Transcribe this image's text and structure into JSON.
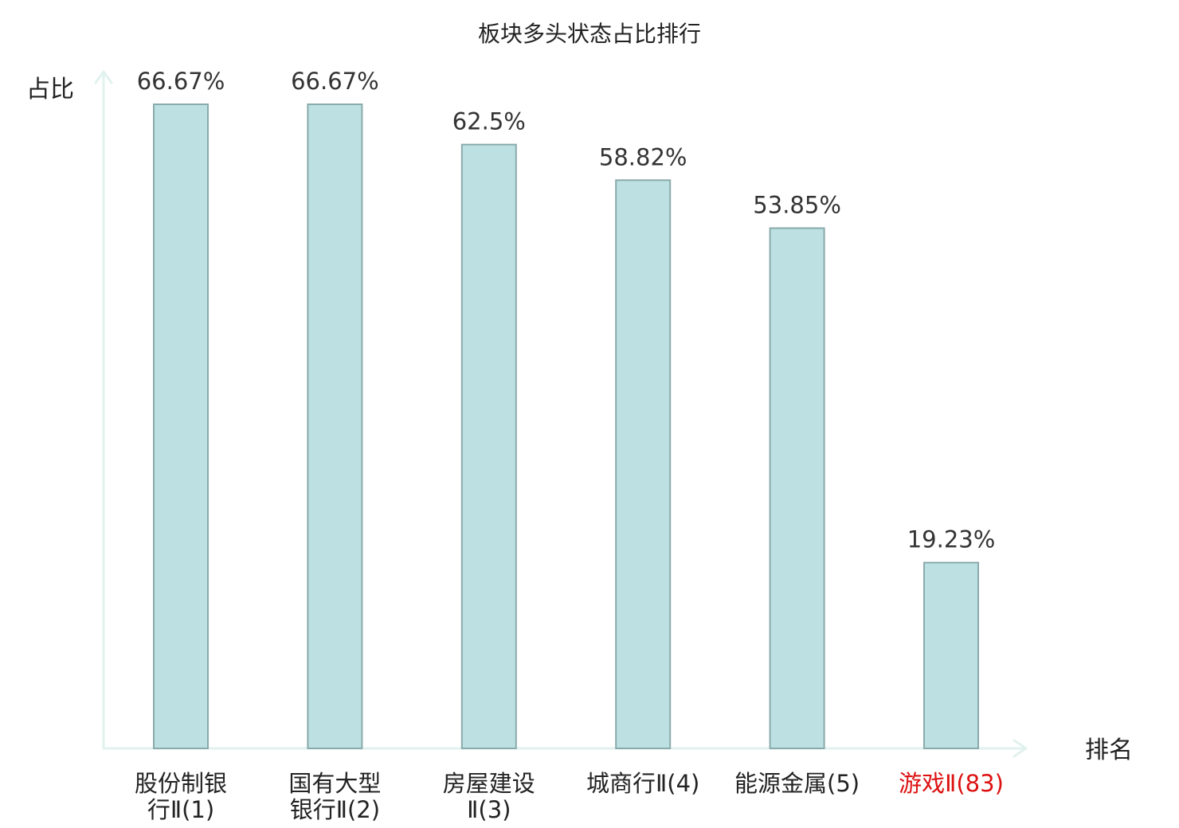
{
  "chart_data": {
    "type": "bar",
    "title": "板块多头状态占比排行",
    "ylabel": "占比",
    "xlabel": "排名",
    "ylim": [
      0,
      70
    ],
    "grid": false,
    "categories": [
      {
        "name": "股份制银行Ⅱ",
        "rank": "(1)",
        "lines": [
          "股份制银",
          "行Ⅱ(1)"
        ],
        "highlight": false
      },
      {
        "name": "国有大型银行Ⅱ",
        "rank": "(2)",
        "lines": [
          "国有大型",
          "银行Ⅱ(2)"
        ],
        "highlight": false
      },
      {
        "name": "房屋建设Ⅱ",
        "rank": "(3)",
        "lines": [
          "房屋建设",
          "Ⅱ(3)"
        ],
        "highlight": false
      },
      {
        "name": "城商行Ⅱ",
        "rank": "(4)",
        "lines": [
          "城商行Ⅱ(4)"
        ],
        "highlight": false
      },
      {
        "name": "能源金属",
        "rank": "(5)",
        "lines": [
          "能源金属(5)"
        ],
        "highlight": false
      },
      {
        "name": "游戏Ⅱ",
        "rank": "(83)",
        "lines": [
          "游戏Ⅱ(83)"
        ],
        "highlight": true
      }
    ],
    "values": [
      66.67,
      66.67,
      62.5,
      58.82,
      53.85,
      19.23
    ],
    "value_labels": [
      "66.67%",
      "66.67%",
      "62.5%",
      "58.82%",
      "53.85%",
      "19.23%"
    ]
  },
  "colors": {
    "bar_fill": "#bde1e3",
    "bar_stroke": "#8aaaab",
    "axis": "#e1f2ef",
    "text": "#222222",
    "value_text": "#333333",
    "highlight": "#dd1111"
  }
}
